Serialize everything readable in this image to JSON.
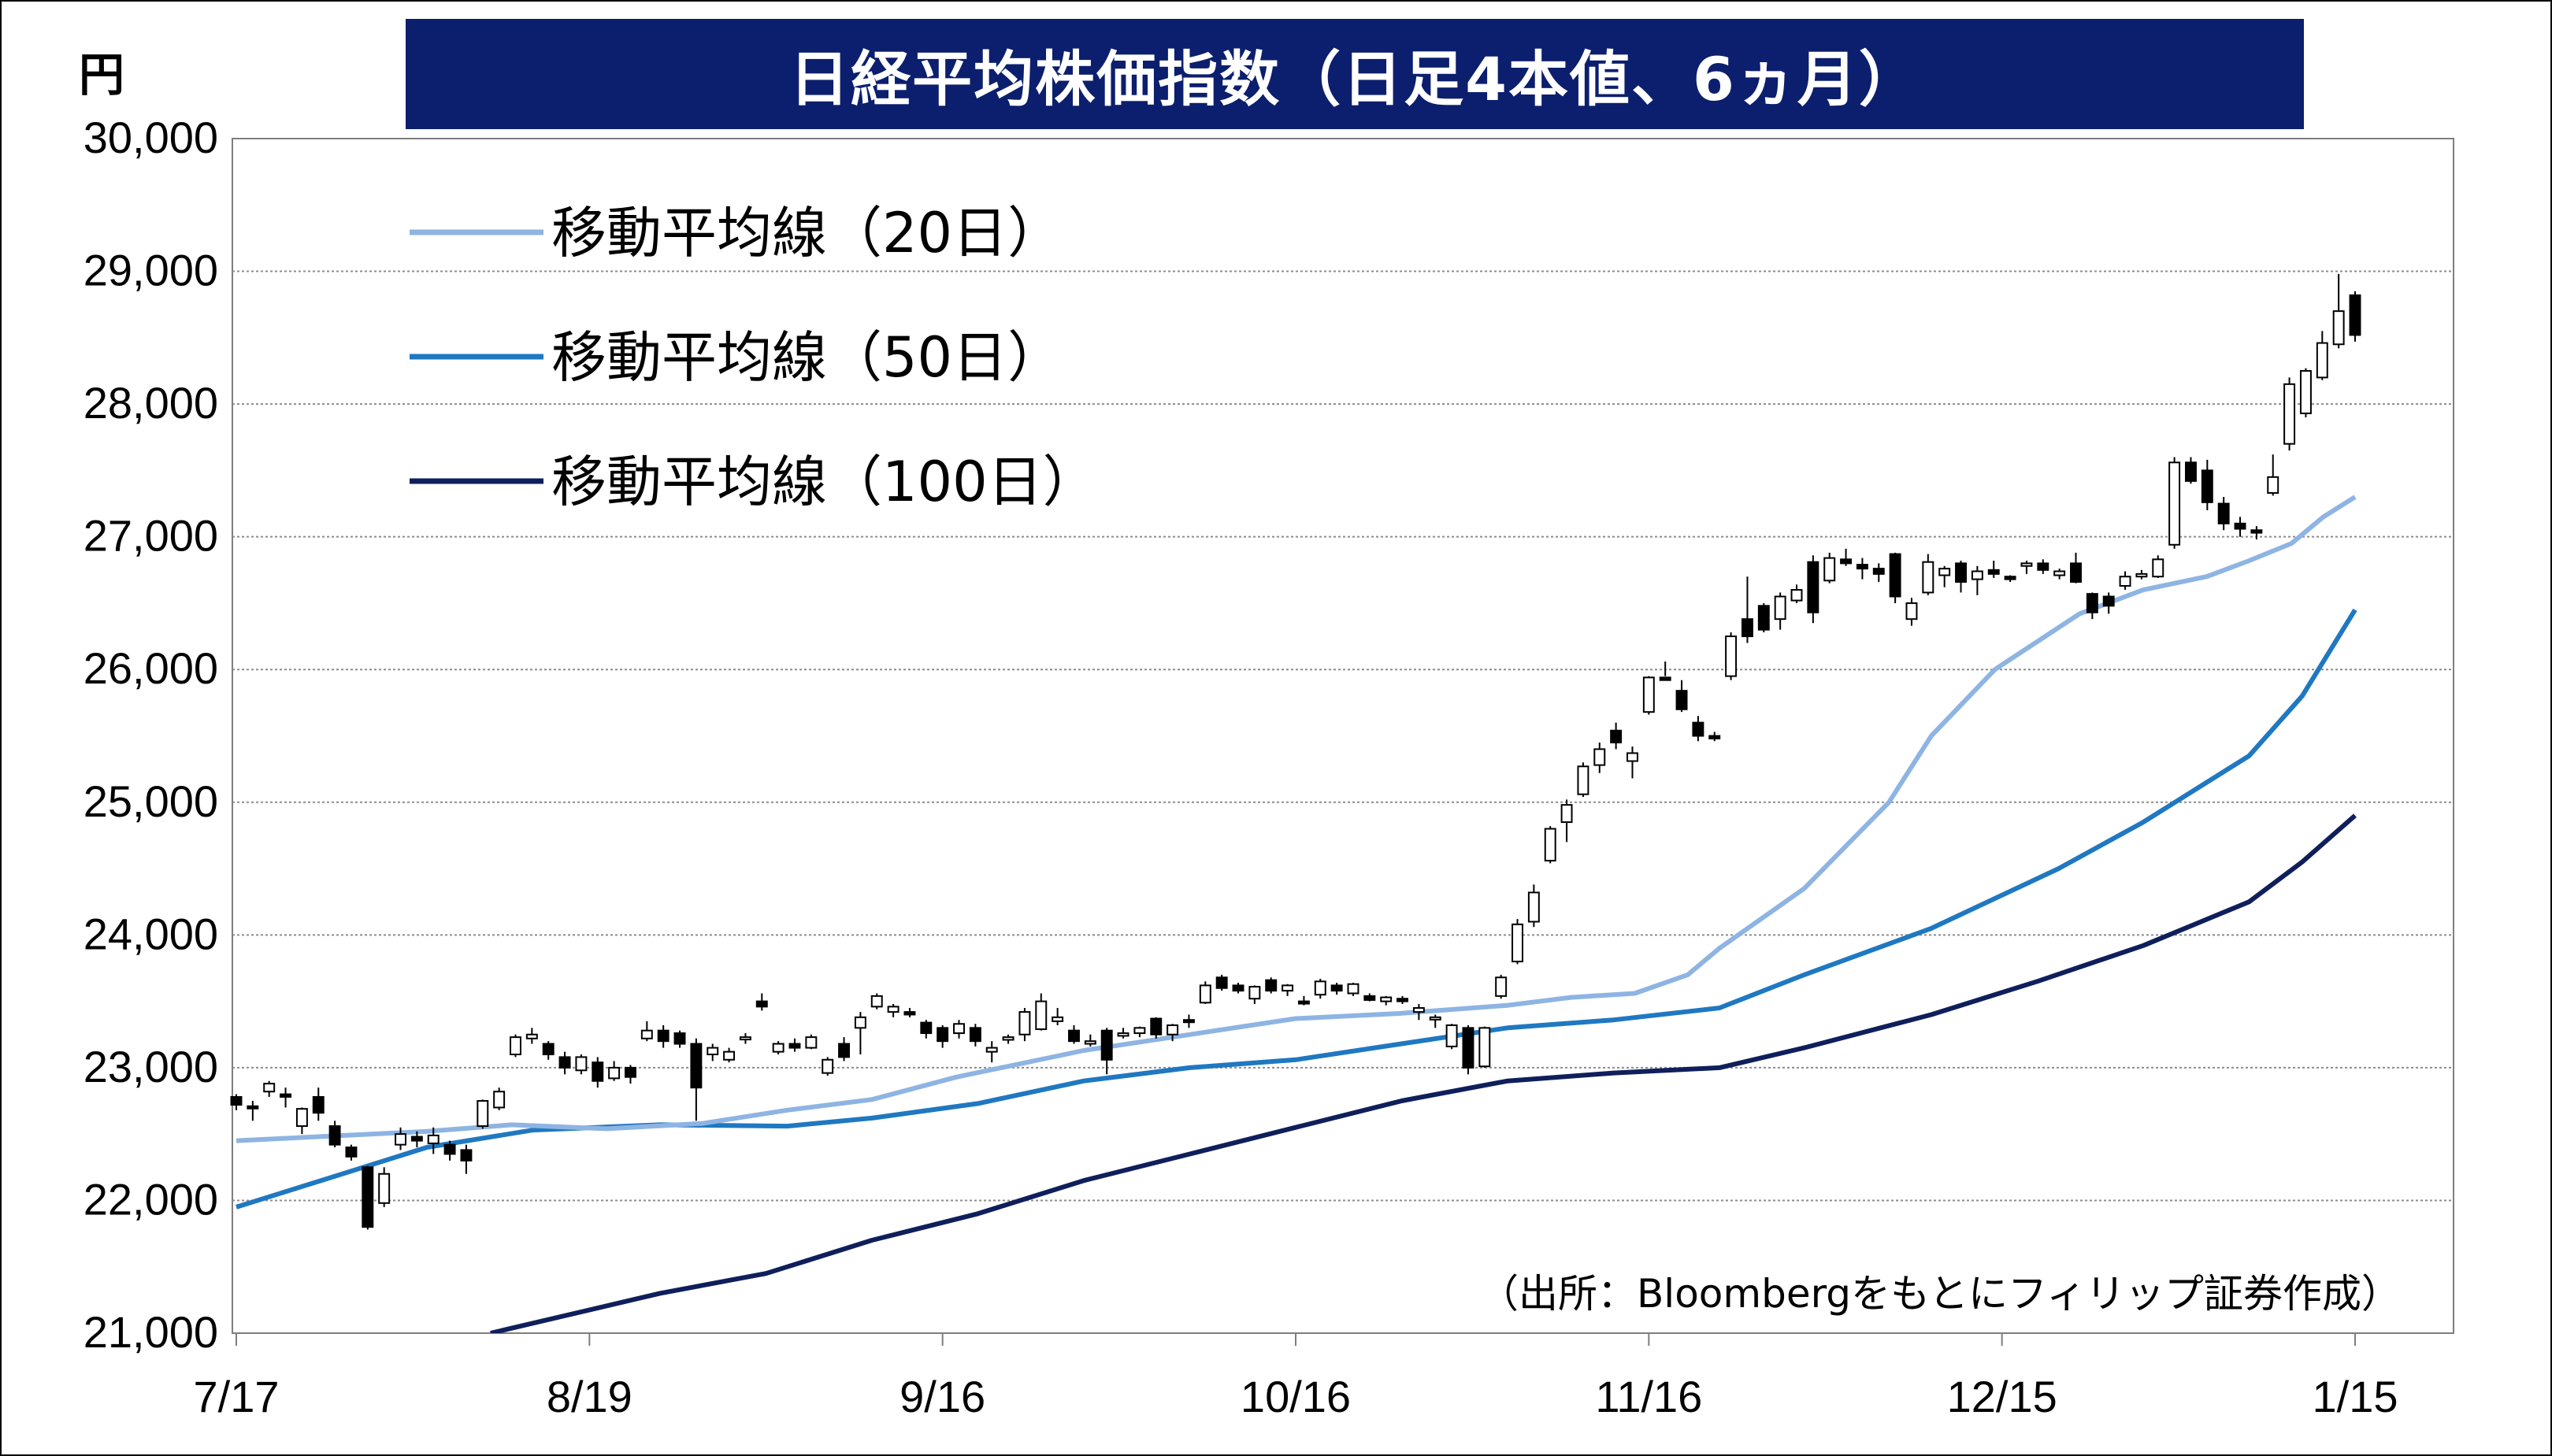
{
  "chart_data": {
    "type": "candlestick+line",
    "title": "日経平均株価指数（日足4本値、6ヵ月）",
    "unit_label": "円",
    "source_note": "（出所：Bloombergをもとにフィリップ証券作成）",
    "y_ticks": [
      "30,000",
      "29,000",
      "28,000",
      "27,000",
      "26,000",
      "25,000",
      "24,000",
      "23,000",
      "22,000",
      "21,000"
    ],
    "ylim": [
      21000,
      30000
    ],
    "x_ticks": [
      "7/17",
      "8/19",
      "9/16",
      "10/16",
      "11/16",
      "12/15",
      "1/15"
    ],
    "grid": true,
    "legend_placement": "top-left",
    "legend": [
      {
        "name": "移動平均線（20日）",
        "color": "#8eb4e3"
      },
      {
        "name": "移動平均線（50日）",
        "color": "#1f78c1"
      },
      {
        "name": "移動平均線（100日）",
        "color": "#0f1f5c"
      }
    ],
    "candles": [
      [
        22780,
        22800,
        22680,
        22720
      ],
      [
        22710,
        22750,
        22600,
        22700
      ],
      [
        22820,
        22900,
        22780,
        22880
      ],
      [
        22800,
        22850,
        22700,
        22780
      ],
      [
        22560,
        22700,
        22500,
        22690
      ],
      [
        22780,
        22850,
        22600,
        22660
      ],
      [
        22560,
        22600,
        22400,
        22420
      ],
      [
        22400,
        22420,
        22300,
        22330
      ],
      [
        22250,
        22260,
        21780,
        21800
      ],
      [
        21980,
        22250,
        21950,
        22200
      ],
      [
        22420,
        22550,
        22380,
        22500
      ],
      [
        22480,
        22520,
        22400,
        22450
      ],
      [
        22430,
        22550,
        22350,
        22490
      ],
      [
        22420,
        22450,
        22300,
        22350
      ],
      [
        22380,
        22420,
        22200,
        22300
      ],
      [
        22560,
        22760,
        22540,
        22750
      ],
      [
        22700,
        22850,
        22680,
        22820
      ],
      [
        23100,
        23250,
        23080,
        23230
      ],
      [
        23220,
        23300,
        23180,
        23250
      ],
      [
        23180,
        23200,
        23060,
        23100
      ],
      [
        23080,
        23120,
        22950,
        23000
      ],
      [
        22980,
        23100,
        22950,
        23080
      ],
      [
        23040,
        23080,
        22850,
        22900
      ],
      [
        22920,
        23050,
        22900,
        23000
      ],
      [
        23000,
        23020,
        22880,
        22930
      ],
      [
        23220,
        23350,
        23200,
        23280
      ],
      [
        23280,
        23320,
        23150,
        23200
      ],
      [
        23260,
        23280,
        23150,
        23180
      ],
      [
        23180,
        23220,
        22600,
        22850
      ],
      [
        23100,
        23180,
        23050,
        23150
      ],
      [
        23060,
        23150,
        23040,
        23120
      ],
      [
        23220,
        23260,
        23180,
        23230
      ],
      [
        23500,
        23560,
        23430,
        23460
      ],
      [
        23120,
        23200,
        23100,
        23180
      ],
      [
        23180,
        23220,
        23120,
        23150
      ],
      [
        23150,
        23250,
        23140,
        23230
      ],
      [
        22960,
        23080,
        22940,
        23060
      ],
      [
        23180,
        23230,
        23050,
        23080
      ],
      [
        23300,
        23420,
        23100,
        23380
      ],
      [
        23460,
        23560,
        23440,
        23540
      ],
      [
        23420,
        23480,
        23380,
        23460
      ],
      [
        23420,
        23450,
        23380,
        23400
      ],
      [
        23340,
        23360,
        23220,
        23260
      ],
      [
        23300,
        23320,
        23150,
        23200
      ],
      [
        23260,
        23360,
        23220,
        23330
      ],
      [
        23300,
        23330,
        23160,
        23200
      ],
      [
        23120,
        23200,
        23040,
        23150
      ],
      [
        23210,
        23250,
        23180,
        23230
      ],
      [
        23250,
        23450,
        23200,
        23420
      ],
      [
        23290,
        23560,
        23280,
        23500
      ],
      [
        23350,
        23450,
        23320,
        23380
      ],
      [
        23280,
        23320,
        23180,
        23200
      ],
      [
        23180,
        23250,
        23160,
        23200
      ],
      [
        23280,
        23300,
        22950,
        23060
      ],
      [
        23240,
        23300,
        23220,
        23260
      ],
      [
        23260,
        23310,
        23230,
        23300
      ],
      [
        23370,
        23380,
        23220,
        23250
      ],
      [
        23250,
        23330,
        23200,
        23320
      ],
      [
        23360,
        23400,
        23300,
        23350
      ],
      [
        23490,
        23650,
        23480,
        23620
      ],
      [
        23680,
        23700,
        23580,
        23600
      ],
      [
        23620,
        23640,
        23560,
        23580
      ],
      [
        23520,
        23620,
        23480,
        23610
      ],
      [
        23660,
        23680,
        23560,
        23580
      ],
      [
        23580,
        23630,
        23540,
        23620
      ],
      [
        23500,
        23540,
        23470,
        23490
      ],
      [
        23550,
        23670,
        23520,
        23650
      ],
      [
        23620,
        23640,
        23550,
        23580
      ],
      [
        23560,
        23640,
        23540,
        23630
      ],
      [
        23540,
        23560,
        23500,
        23510
      ],
      [
        23500,
        23540,
        23470,
        23530
      ],
      [
        23520,
        23540,
        23480,
        23500
      ],
      [
        23420,
        23480,
        23360,
        23450
      ],
      [
        23370,
        23400,
        23300,
        23380
      ],
      [
        23160,
        23330,
        23140,
        23320
      ],
      [
        23300,
        23320,
        22950,
        23000
      ],
      [
        23010,
        23310,
        23000,
        23300
      ],
      [
        23540,
        23700,
        23520,
        23680
      ],
      [
        23800,
        24120,
        23780,
        24080
      ],
      [
        24100,
        24380,
        24060,
        24320
      ],
      [
        24560,
        24820,
        24540,
        24800
      ],
      [
        24850,
        25020,
        24700,
        24980
      ],
      [
        25060,
        25300,
        25040,
        25270
      ],
      [
        25280,
        25450,
        25220,
        25400
      ],
      [
        25540,
        25600,
        25400,
        25450
      ],
      [
        25310,
        25420,
        25180,
        25370
      ],
      [
        25680,
        25950,
        25660,
        25940
      ],
      [
        25940,
        26060,
        25950,
        25920
      ],
      [
        25840,
        25920,
        25680,
        25700
      ],
      [
        25600,
        25650,
        25460,
        25500
      ],
      [
        25500,
        25530,
        25460,
        25480
      ],
      [
        25950,
        26280,
        25920,
        26250
      ],
      [
        26380,
        26700,
        26200,
        26250
      ],
      [
        26480,
        26500,
        26280,
        26300
      ],
      [
        26380,
        26580,
        26300,
        26550
      ],
      [
        26520,
        26640,
        26500,
        26600
      ],
      [
        26810,
        26860,
        26350,
        26430
      ],
      [
        26670,
        26880,
        26650,
        26840
      ],
      [
        26830,
        26910,
        26780,
        26800
      ],
      [
        26790,
        26840,
        26680,
        26760
      ],
      [
        26760,
        26800,
        26660,
        26720
      ],
      [
        26870,
        26880,
        26500,
        26550
      ],
      [
        26380,
        26540,
        26330,
        26500
      ],
      [
        26580,
        26870,
        26560,
        26810
      ],
      [
        26710,
        26780,
        26620,
        26760
      ],
      [
        26800,
        26820,
        26580,
        26660
      ],
      [
        26680,
        26780,
        26560,
        26740
      ],
      [
        26750,
        26820,
        26690,
        26720
      ],
      [
        26700,
        26710,
        26660,
        26680
      ],
      [
        26780,
        26820,
        26720,
        26800
      ],
      [
        26800,
        26830,
        26720,
        26750
      ],
      [
        26710,
        26760,
        26680,
        26740
      ],
      [
        26800,
        26880,
        26650,
        26660
      ],
      [
        26570,
        26580,
        26380,
        26430
      ],
      [
        26550,
        26580,
        26420,
        26480
      ],
      [
        26630,
        26740,
        26600,
        26700
      ],
      [
        26700,
        26750,
        26680,
        26720
      ],
      [
        26700,
        26860,
        26690,
        26830
      ],
      [
        26940,
        27600,
        26910,
        27560
      ],
      [
        27560,
        27600,
        27400,
        27420
      ],
      [
        27500,
        27580,
        27200,
        27260
      ],
      [
        27250,
        27300,
        27050,
        27100
      ],
      [
        27100,
        27150,
        27000,
        27060
      ],
      [
        27050,
        27080,
        26980,
        27030
      ],
      [
        27330,
        27620,
        27310,
        27450
      ],
      [
        27700,
        28200,
        27650,
        28150
      ],
      [
        27930,
        28270,
        27900,
        28250
      ],
      [
        28200,
        28550,
        28180,
        28460
      ],
      [
        28450,
        28980,
        28420,
        28700
      ],
      [
        28820,
        28850,
        28470,
        28520
      ]
    ],
    "ma20": [
      [
        0,
        22450
      ],
      [
        0.09,
        22520
      ],
      [
        0.13,
        22570
      ],
      [
        0.175,
        22540
      ],
      [
        0.22,
        22580
      ],
      [
        0.26,
        22680
      ],
      [
        0.3,
        22760
      ],
      [
        0.34,
        22930
      ],
      [
        0.4,
        23130
      ],
      [
        0.45,
        23250
      ],
      [
        0.5,
        23370
      ],
      [
        0.55,
        23410
      ],
      [
        0.6,
        23470
      ],
      [
        0.63,
        23530
      ],
      [
        0.66,
        23560
      ],
      [
        0.685,
        23700
      ],
      [
        0.7,
        23900
      ],
      [
        0.74,
        24350
      ],
      [
        0.78,
        25000
      ],
      [
        0.8,
        25500
      ],
      [
        0.83,
        26000
      ],
      [
        0.87,
        26420
      ],
      [
        0.9,
        26600
      ],
      [
        0.93,
        26700
      ],
      [
        0.95,
        26820
      ],
      [
        0.97,
        26950
      ],
      [
        0.985,
        27150
      ],
      [
        1.0,
        27300
      ]
    ],
    "ma50": [
      [
        0,
        21950
      ],
      [
        0.04,
        22150
      ],
      [
        0.09,
        22400
      ],
      [
        0.14,
        22530
      ],
      [
        0.2,
        22570
      ],
      [
        0.26,
        22560
      ],
      [
        0.3,
        22620
      ],
      [
        0.35,
        22730
      ],
      [
        0.4,
        22900
      ],
      [
        0.45,
        23000
      ],
      [
        0.5,
        23060
      ],
      [
        0.55,
        23180
      ],
      [
        0.6,
        23300
      ],
      [
        0.65,
        23360
      ],
      [
        0.7,
        23450
      ],
      [
        0.74,
        23700
      ],
      [
        0.8,
        24050
      ],
      [
        0.86,
        24500
      ],
      [
        0.9,
        24850
      ],
      [
        0.95,
        25350
      ],
      [
        0.975,
        25800
      ],
      [
        1.0,
        26450
      ]
    ],
    "ma100": [
      [
        0.12,
        21000
      ],
      [
        0.2,
        21300
      ],
      [
        0.25,
        21450
      ],
      [
        0.3,
        21700
      ],
      [
        0.35,
        21900
      ],
      [
        0.4,
        22150
      ],
      [
        0.45,
        22350
      ],
      [
        0.5,
        22550
      ],
      [
        0.55,
        22750
      ],
      [
        0.6,
        22900
      ],
      [
        0.65,
        22960
      ],
      [
        0.7,
        23000
      ],
      [
        0.74,
        23150
      ],
      [
        0.8,
        23400
      ],
      [
        0.85,
        23650
      ],
      [
        0.9,
        23920
      ],
      [
        0.95,
        24250
      ],
      [
        0.975,
        24550
      ],
      [
        1.0,
        24900
      ]
    ]
  }
}
